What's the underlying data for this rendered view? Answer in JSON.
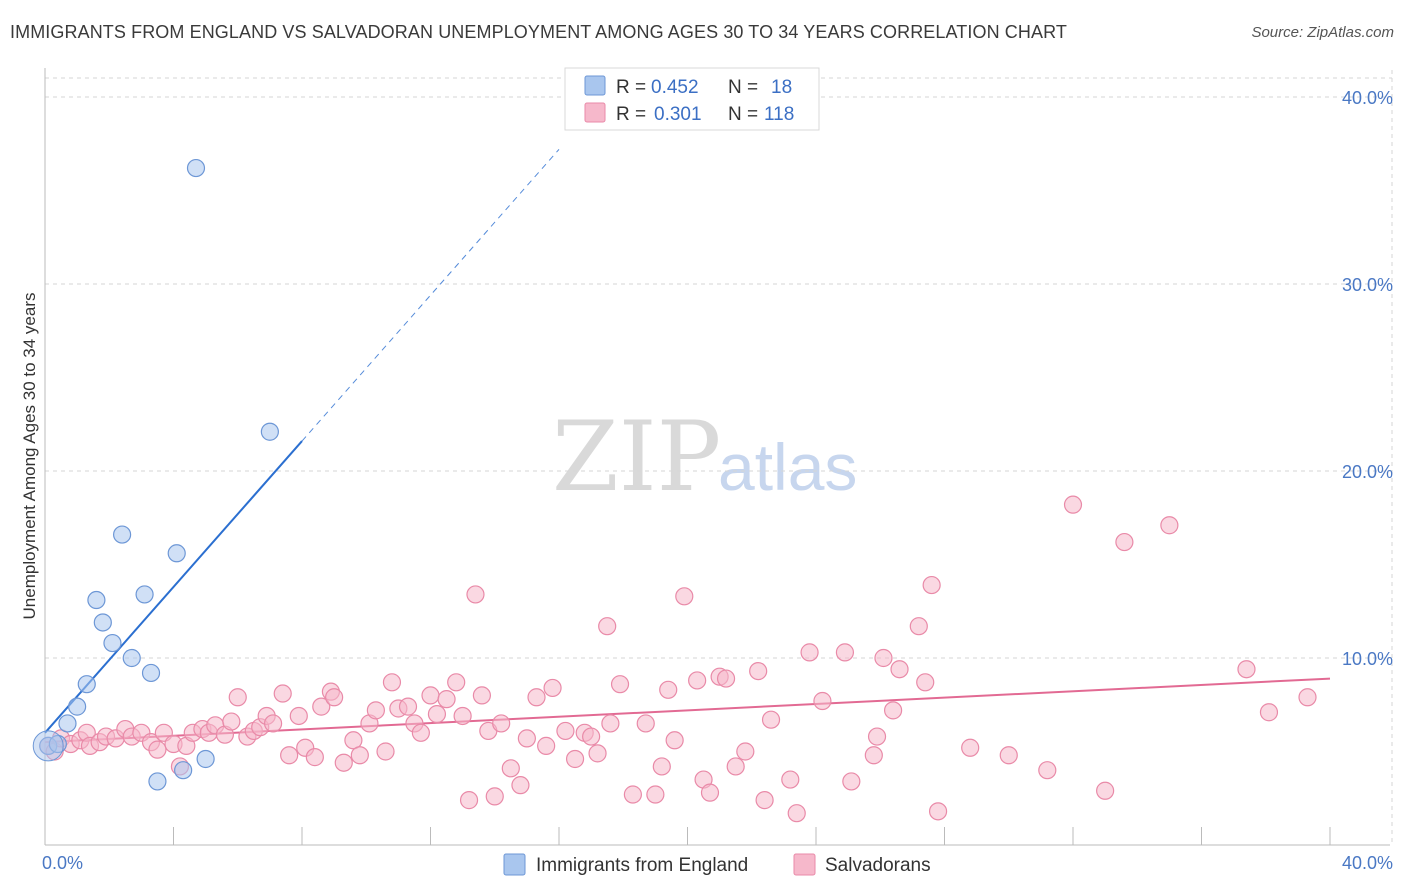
{
  "title": "IMMIGRANTS FROM ENGLAND VS SALVADORAN UNEMPLOYMENT AMONG AGES 30 TO 34 YEARS CORRELATION CHART",
  "source": "Source: ZipAtlas.com",
  "watermark": {
    "zip": "ZIP",
    "atlas": "atlas"
  },
  "colors": {
    "england": "#a9c6ee",
    "england_stroke": "#6d97d6",
    "england_line": "#2b6fd0",
    "salvadoran": "#f6b8cb",
    "salvadoran_stroke": "#e98aa8",
    "salvadoran_line": "#e26a93",
    "grid": "#d6d6d6",
    "axis_label": "#4a78c4"
  },
  "legend": {
    "rows": [
      {
        "r_label": "R =",
        "r_value": "0.452",
        "n_label": "N =",
        "n_value": "18"
      },
      {
        "r_label": "R =",
        "r_value": "0.301",
        "n_label": "N =",
        "n_value": "118"
      }
    ]
  },
  "bottom_legend": [
    "Immigrants from England",
    "Salvadorans"
  ],
  "chart_data": {
    "type": "scatter",
    "title": "IMMIGRANTS FROM ENGLAND VS SALVADORAN UNEMPLOYMENT AMONG AGES 30 TO 34 YEARS CORRELATION CHART",
    "xlabel": "",
    "ylabel": "Unemployment Among Ages 30 to 34 years",
    "xlim": [
      0,
      40
    ],
    "ylim": [
      0,
      41
    ],
    "x_tick_labels": [
      "0.0%",
      "40.0%"
    ],
    "y_ticks": [
      10,
      20,
      30,
      40
    ],
    "y_tick_labels": [
      "10.0%",
      "20.0%",
      "30.0%",
      "40.0%"
    ],
    "grid": true,
    "legend_position": "top-center",
    "series": [
      {
        "name": "Immigrants from England",
        "R": 0.452,
        "N": 18,
        "trend": {
          "x0": 0,
          "y0": 6.0,
          "x1": 8.0,
          "y1": 21.6,
          "dashed_to_x": 16.0
        },
        "points": [
          [
            0.1,
            5.3
          ],
          [
            0.4,
            5.4
          ],
          [
            0.7,
            6.5
          ],
          [
            1.0,
            7.4
          ],
          [
            1.3,
            8.6
          ],
          [
            1.6,
            13.1
          ],
          [
            1.8,
            11.9
          ],
          [
            2.1,
            10.8
          ],
          [
            2.4,
            16.6
          ],
          [
            2.7,
            10.0
          ],
          [
            3.1,
            13.4
          ],
          [
            3.3,
            9.2
          ],
          [
            3.5,
            3.4
          ],
          [
            4.1,
            15.6
          ],
          [
            4.3,
            4.0
          ],
          [
            4.7,
            36.2
          ],
          [
            5.0,
            4.6
          ],
          [
            7.0,
            22.1
          ]
        ]
      },
      {
        "name": "Salvadorans",
        "R": 0.301,
        "N": 118,
        "trend": {
          "x0": 0,
          "y0": 5.5,
          "x1": 40.0,
          "y1": 8.9
        },
        "points": [
          [
            0.1,
            5.3
          ],
          [
            0.3,
            5.0
          ],
          [
            0.5,
            5.7
          ],
          [
            0.8,
            5.4
          ],
          [
            1.1,
            5.6
          ],
          [
            1.3,
            6.0
          ],
          [
            1.4,
            5.3
          ],
          [
            1.7,
            5.5
          ],
          [
            1.9,
            5.8
          ],
          [
            2.2,
            5.7
          ],
          [
            2.5,
            6.2
          ],
          [
            2.7,
            5.8
          ],
          [
            3.0,
            6.0
          ],
          [
            3.3,
            5.5
          ],
          [
            3.5,
            5.1
          ],
          [
            3.7,
            6.0
          ],
          [
            4.0,
            5.4
          ],
          [
            4.2,
            4.2
          ],
          [
            4.4,
            5.3
          ],
          [
            4.6,
            6.0
          ],
          [
            4.9,
            6.2
          ],
          [
            5.1,
            6.0
          ],
          [
            5.3,
            6.4
          ],
          [
            5.6,
            5.9
          ],
          [
            5.8,
            6.6
          ],
          [
            6.0,
            7.9
          ],
          [
            6.3,
            5.8
          ],
          [
            6.5,
            6.1
          ],
          [
            6.7,
            6.3
          ],
          [
            6.9,
            6.9
          ],
          [
            7.1,
            6.5
          ],
          [
            7.4,
            8.1
          ],
          [
            7.6,
            4.8
          ],
          [
            7.9,
            6.9
          ],
          [
            8.1,
            5.2
          ],
          [
            8.4,
            4.7
          ],
          [
            8.6,
            7.4
          ],
          [
            8.9,
            8.2
          ],
          [
            9.0,
            7.9
          ],
          [
            9.3,
            4.4
          ],
          [
            9.6,
            5.6
          ],
          [
            9.8,
            4.8
          ],
          [
            10.1,
            6.5
          ],
          [
            10.3,
            7.2
          ],
          [
            10.6,
            5.0
          ],
          [
            10.8,
            8.7
          ],
          [
            11.0,
            7.3
          ],
          [
            11.3,
            7.4
          ],
          [
            11.5,
            6.5
          ],
          [
            11.7,
            6.0
          ],
          [
            12.0,
            8.0
          ],
          [
            12.2,
            7.0
          ],
          [
            12.5,
            7.8
          ],
          [
            12.8,
            8.7
          ],
          [
            13.0,
            6.9
          ],
          [
            13.2,
            2.4
          ],
          [
            13.4,
            13.4
          ],
          [
            13.6,
            8.0
          ],
          [
            13.8,
            6.1
          ],
          [
            14.0,
            2.6
          ],
          [
            14.2,
            6.5
          ],
          [
            14.5,
            4.1
          ],
          [
            14.8,
            3.2
          ],
          [
            15.0,
            5.7
          ],
          [
            15.3,
            7.9
          ],
          [
            15.6,
            5.3
          ],
          [
            15.8,
            8.4
          ],
          [
            16.2,
            6.1
          ],
          [
            16.5,
            4.6
          ],
          [
            16.8,
            6.0
          ],
          [
            17.0,
            5.8
          ],
          [
            17.2,
            4.9
          ],
          [
            17.5,
            11.7
          ],
          [
            17.6,
            6.5
          ],
          [
            17.9,
            8.6
          ],
          [
            18.3,
            2.7
          ],
          [
            18.7,
            6.5
          ],
          [
            19.0,
            2.7
          ],
          [
            19.2,
            4.2
          ],
          [
            19.4,
            8.3
          ],
          [
            19.6,
            5.6
          ],
          [
            19.9,
            13.3
          ],
          [
            20.3,
            8.8
          ],
          [
            20.5,
            3.5
          ],
          [
            20.7,
            2.8
          ],
          [
            21.0,
            9.0
          ],
          [
            21.2,
            8.9
          ],
          [
            21.5,
            4.2
          ],
          [
            21.8,
            5.0
          ],
          [
            22.2,
            9.3
          ],
          [
            22.4,
            2.4
          ],
          [
            22.6,
            6.7
          ],
          [
            23.2,
            3.5
          ],
          [
            23.4,
            1.7
          ],
          [
            23.8,
            10.3
          ],
          [
            24.2,
            7.7
          ],
          [
            24.9,
            10.3
          ],
          [
            25.1,
            3.4
          ],
          [
            25.8,
            4.8
          ],
          [
            25.9,
            5.8
          ],
          [
            26.1,
            10.0
          ],
          [
            26.4,
            7.2
          ],
          [
            26.6,
            9.4
          ],
          [
            27.2,
            11.7
          ],
          [
            27.4,
            8.7
          ],
          [
            27.6,
            13.9
          ],
          [
            27.8,
            1.8
          ],
          [
            28.8,
            5.2
          ],
          [
            30.0,
            4.8
          ],
          [
            31.2,
            4.0
          ],
          [
            32.0,
            18.2
          ],
          [
            33.0,
            2.9
          ],
          [
            33.6,
            16.2
          ],
          [
            35.0,
            17.1
          ],
          [
            37.4,
            9.4
          ],
          [
            38.1,
            7.1
          ],
          [
            39.3,
            7.9
          ]
        ]
      }
    ]
  }
}
